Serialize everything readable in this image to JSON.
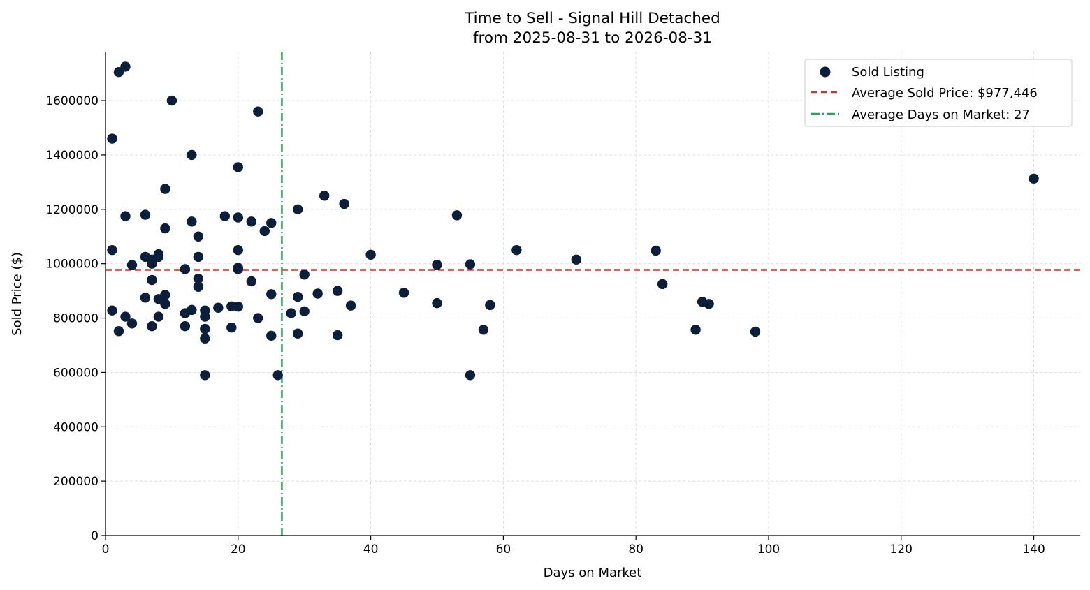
{
  "chart_data": {
    "type": "scatter",
    "title": "Time to Sell - Signal Hill Detached",
    "subtitle": "from 2025-08-31 to 2026-08-31",
    "xlabel": "Days on Market",
    "ylabel": "Sold Price ($)",
    "xlim": [
      0,
      147
    ],
    "ylim": [
      0,
      1780000
    ],
    "xticks": [
      "0",
      "20",
      "40",
      "60",
      "80",
      "100",
      "120",
      "140"
    ],
    "yticks": [
      "0",
      "200000",
      "400000",
      "600000",
      "800000",
      "1000000",
      "1200000",
      "1400000",
      "1600000"
    ],
    "grid": true,
    "legend_position": "top-right",
    "series": [
      {
        "name": "Sold Listing",
        "color": "#0b1f3a",
        "points": [
          [
            1,
            1460000
          ],
          [
            1,
            1050000
          ],
          [
            1,
            828000
          ],
          [
            2,
            1705000
          ],
          [
            2,
            752000
          ],
          [
            3,
            1725000
          ],
          [
            3,
            1175000
          ],
          [
            3,
            805000
          ],
          [
            4,
            995000
          ],
          [
            4,
            780000
          ],
          [
            6,
            1180000
          ],
          [
            6,
            1025000
          ],
          [
            6,
            875000
          ],
          [
            7,
            1000000
          ],
          [
            7,
            1015000
          ],
          [
            7,
            940000
          ],
          [
            7,
            770000
          ],
          [
            8,
            1025000
          ],
          [
            8,
            1035000
          ],
          [
            8,
            870000
          ],
          [
            8,
            805000
          ],
          [
            9,
            1275000
          ],
          [
            9,
            1130000
          ],
          [
            9,
            885000
          ],
          [
            9,
            852000
          ],
          [
            10,
            1600000
          ],
          [
            12,
            980000
          ],
          [
            12,
            818000
          ],
          [
            12,
            770000
          ],
          [
            13,
            1400000
          ],
          [
            13,
            1155000
          ],
          [
            13,
            830000
          ],
          [
            14,
            1100000
          ],
          [
            14,
            1025000
          ],
          [
            14,
            945000
          ],
          [
            14,
            915000
          ],
          [
            15,
            828000
          ],
          [
            15,
            805000
          ],
          [
            15,
            760000
          ],
          [
            15,
            725000
          ],
          [
            15,
            590000
          ],
          [
            17,
            838000
          ],
          [
            18,
            1175000
          ],
          [
            19,
            843000
          ],
          [
            19,
            765000
          ],
          [
            20,
            1355000
          ],
          [
            20,
            1170000
          ],
          [
            20,
            1050000
          ],
          [
            20,
            985000
          ],
          [
            20,
            980000
          ],
          [
            20,
            842000
          ],
          [
            22,
            1155000
          ],
          [
            22,
            935000
          ],
          [
            23,
            1560000
          ],
          [
            23,
            800000
          ],
          [
            24,
            1120000
          ],
          [
            25,
            1150000
          ],
          [
            25,
            888000
          ],
          [
            25,
            735000
          ],
          [
            26,
            590000
          ],
          [
            28,
            818000
          ],
          [
            29,
            1200000
          ],
          [
            29,
            878000
          ],
          [
            29,
            743000
          ],
          [
            30,
            960000
          ],
          [
            30,
            825000
          ],
          [
            32,
            890000
          ],
          [
            33,
            1250000
          ],
          [
            35,
            900000
          ],
          [
            35,
            737000
          ],
          [
            36,
            1220000
          ],
          [
            37,
            846000
          ],
          [
            40,
            1033000
          ],
          [
            45,
            893000
          ],
          [
            50,
            996000
          ],
          [
            50,
            855000
          ],
          [
            53,
            1178000
          ],
          [
            55,
            998000
          ],
          [
            55,
            590000
          ],
          [
            57,
            757000
          ],
          [
            58,
            848000
          ],
          [
            62,
            1050000
          ],
          [
            71,
            1015000
          ],
          [
            83,
            1048000
          ],
          [
            84,
            925000
          ],
          [
            89,
            757000
          ],
          [
            90,
            860000
          ],
          [
            91,
            852000
          ],
          [
            98,
            750000
          ],
          [
            140,
            1313000
          ]
        ]
      }
    ],
    "reference_lines": {
      "avg_price": {
        "label": "Average Sold Price: $977,446",
        "value": 977446,
        "color": "#c0392b",
        "style": "dashed"
      },
      "avg_days": {
        "label": "Average Days on Market: 27",
        "value": 26.6,
        "color": "#27a35a",
        "style": "dashdot"
      }
    }
  }
}
